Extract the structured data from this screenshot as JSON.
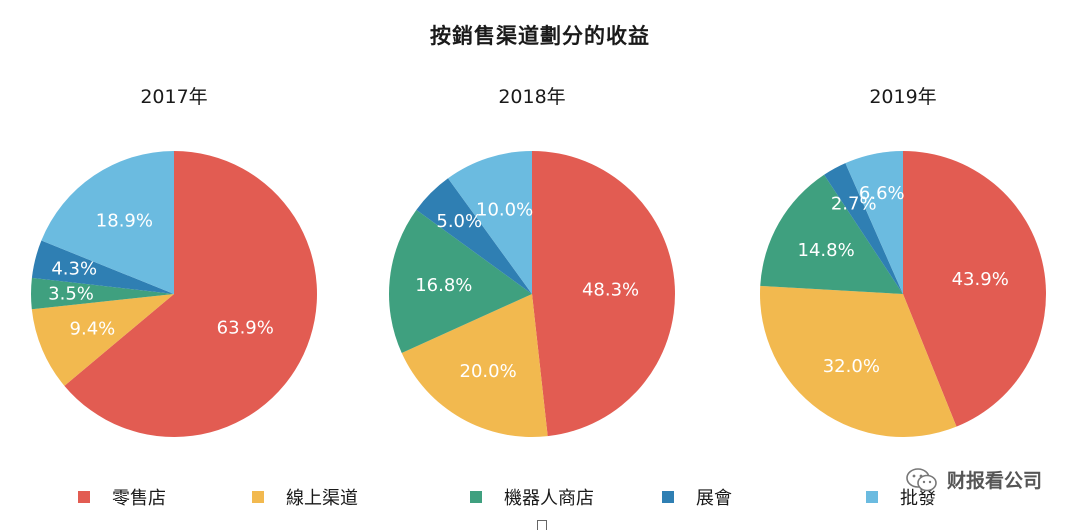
{
  "title": "按銷售渠道劃分的收益",
  "legend": [
    {
      "label": "零售店",
      "color": "#e25c52"
    },
    {
      "label": "線上渠道",
      "color": "#f2b94f"
    },
    {
      "label": "機器人商店",
      "color": "#3fa07f"
    },
    {
      "label": "展會",
      "color": "#2f7fb3"
    },
    {
      "label": "批發",
      "color": "#6bbbe0"
    }
  ],
  "watermark": {
    "text": "财报看公司",
    "icon": "wechat-icon"
  },
  "chart_data": [
    {
      "type": "pie",
      "title": "2017年",
      "categories": [
        "零售店",
        "線上渠道",
        "機器人商店",
        "展會",
        "批發"
      ],
      "values": [
        63.9,
        9.4,
        3.5,
        4.3,
        18.9
      ],
      "labels": [
        "63.9%",
        "9.4%",
        "3.5%",
        "4.3%",
        "18.9%"
      ]
    },
    {
      "type": "pie",
      "title": "2018年",
      "categories": [
        "零售店",
        "線上渠道",
        "機器人商店",
        "展會",
        "批發"
      ],
      "values": [
        48.3,
        20.0,
        16.8,
        5.0,
        10.0
      ],
      "labels": [
        "48.3%",
        "20.0%",
        "16.8%",
        "5.0%",
        "10.0%"
      ]
    },
    {
      "type": "pie",
      "title": "2019年",
      "categories": [
        "零售店",
        "線上渠道",
        "機器人商店",
        "展會",
        "批發"
      ],
      "values": [
        43.9,
        32.0,
        14.8,
        2.7,
        6.6
      ],
      "labels": [
        "43.9%",
        "32.0%",
        "14.8%",
        "2.7%",
        "6.6%"
      ]
    }
  ]
}
